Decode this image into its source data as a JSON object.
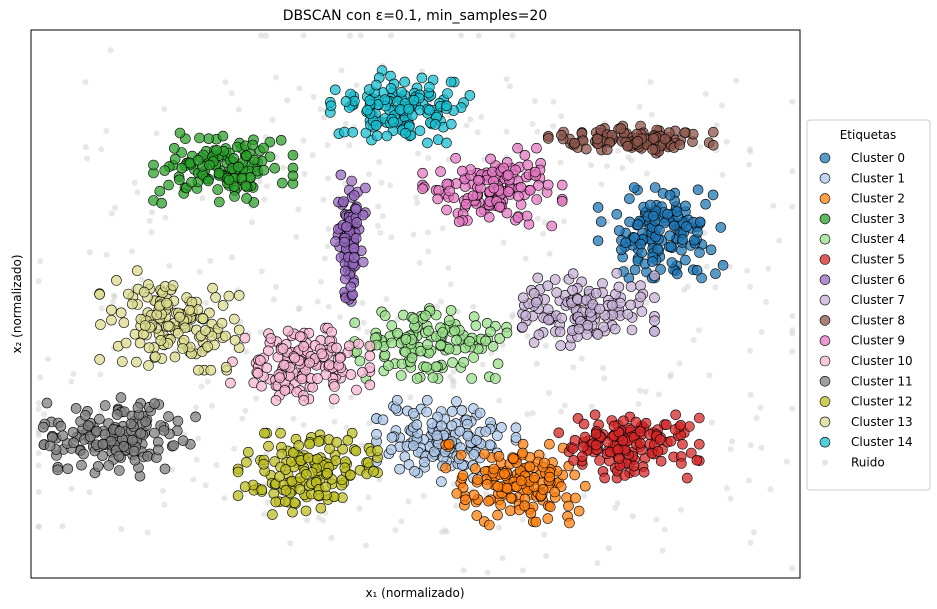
{
  "chart_data": {
    "type": "scatter",
    "title": "DBSCAN con ε=0.1, min_samples=20",
    "xlabel": "x₁ (normalizado)",
    "ylabel": "x₂ (normalizado)",
    "xticks": [],
    "yticks": [],
    "legend": {
      "title": "Etiquetas",
      "placement": "center-right outside"
    },
    "series": [
      {
        "name": "Cluster 0",
        "color": "#1f77b4",
        "center": [
          0.82,
          0.63
        ],
        "spread": [
          0.05,
          0.05
        ],
        "count": 150
      },
      {
        "name": "Cluster 1",
        "color": "#aec7e8",
        "center": [
          0.54,
          0.25
        ],
        "spread": [
          0.055,
          0.045
        ],
        "count": 140
      },
      {
        "name": "Cluster 2",
        "color": "#ff7f0e",
        "center": [
          0.63,
          0.17
        ],
        "spread": [
          0.055,
          0.045
        ],
        "count": 150
      },
      {
        "name": "Cluster 3",
        "color": "#2ca02c",
        "center": [
          0.25,
          0.75
        ],
        "spread": [
          0.055,
          0.04
        ],
        "count": 140
      },
      {
        "name": "Cluster 4",
        "color": "#98df8a",
        "center": [
          0.52,
          0.43
        ],
        "spread": [
          0.06,
          0.04
        ],
        "count": 140
      },
      {
        "name": "Cluster 5",
        "color": "#d62728",
        "center": [
          0.77,
          0.24
        ],
        "spread": [
          0.06,
          0.035
        ],
        "count": 150
      },
      {
        "name": "Cluster 6",
        "color": "#9467bd",
        "center": [
          0.415,
          0.62
        ],
        "spread": [
          0.012,
          0.07
        ],
        "count": 90
      },
      {
        "name": "Cluster 7",
        "color": "#c5b0d5",
        "center": [
          0.72,
          0.49
        ],
        "spread": [
          0.055,
          0.04
        ],
        "count": 130
      },
      {
        "name": "Cluster 8",
        "color": "#8c564b",
        "center": [
          0.78,
          0.8
        ],
        "spread": [
          0.065,
          0.015
        ],
        "count": 110
      },
      {
        "name": "Cluster 9",
        "color": "#e377c2",
        "center": [
          0.6,
          0.71
        ],
        "spread": [
          0.055,
          0.045
        ],
        "count": 140
      },
      {
        "name": "Cluster 10",
        "color": "#f7b6d2",
        "center": [
          0.35,
          0.39
        ],
        "spread": [
          0.055,
          0.04
        ],
        "count": 140
      },
      {
        "name": "Cluster 11",
        "color": "#7f7f7f",
        "center": [
          0.115,
          0.26
        ],
        "spread": [
          0.06,
          0.045
        ],
        "count": 150
      },
      {
        "name": "Cluster 12",
        "color": "#bcbd22",
        "center": [
          0.36,
          0.19
        ],
        "spread": [
          0.055,
          0.045
        ],
        "count": 150
      },
      {
        "name": "Cluster 13",
        "color": "#dbdb8d",
        "center": [
          0.18,
          0.47
        ],
        "spread": [
          0.055,
          0.055
        ],
        "count": 150
      },
      {
        "name": "Cluster 14",
        "color": "#17becf",
        "center": [
          0.48,
          0.86
        ],
        "spread": [
          0.055,
          0.04
        ],
        "count": 140
      },
      {
        "name": "Ruido",
        "color": "#d3d3d3",
        "noise": true,
        "count": 500
      }
    ]
  }
}
